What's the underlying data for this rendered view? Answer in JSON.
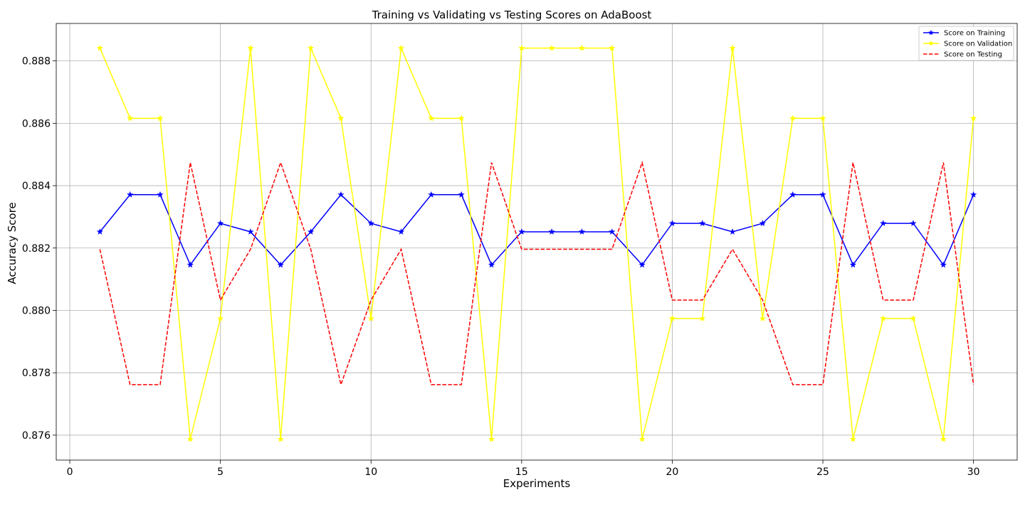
{
  "chart_data": {
    "type": "line",
    "title": "Training vs Validating vs Testing Scores on AdaBoost",
    "xlabel": "Experiments",
    "ylabel": "Accuracy Score",
    "xlim": [
      -0.45,
      31.45
    ],
    "ylim": [
      0.8752,
      0.8892
    ],
    "xticks": [
      0,
      5,
      10,
      15,
      20,
      25,
      30
    ],
    "yticks": [
      0.876,
      0.878,
      0.88,
      0.882,
      0.884,
      0.886,
      0.888
    ],
    "ytick_labels": [
      "0.876",
      "0.878",
      "0.880",
      "0.882",
      "0.884",
      "0.886",
      "0.888"
    ],
    "grid": true,
    "legend_position": "top-right",
    "x": [
      1,
      2,
      3,
      4,
      5,
      6,
      7,
      8,
      9,
      10,
      11,
      12,
      13,
      14,
      15,
      16,
      17,
      18,
      19,
      20,
      21,
      22,
      23,
      24,
      25,
      26,
      27,
      28,
      29,
      30
    ],
    "series": [
      {
        "name": "Score on Training",
        "color": "#0000ff",
        "style": "solid",
        "marker": "star",
        "values": [
          0.88252,
          0.88371,
          0.88371,
          0.88146,
          0.88279,
          0.88252,
          0.88146,
          0.88252,
          0.88371,
          0.88279,
          0.88252,
          0.88371,
          0.88371,
          0.88146,
          0.88252,
          0.88252,
          0.88252,
          0.88252,
          0.88146,
          0.88279,
          0.88279,
          0.88252,
          0.88279,
          0.88371,
          0.88371,
          0.88146,
          0.88279,
          0.88279,
          0.88146,
          0.88371
        ]
      },
      {
        "name": "Score on Validation",
        "color": "#ffff00",
        "style": "solid",
        "marker": "star",
        "values": [
          0.88841,
          0.88616,
          0.88616,
          0.87587,
          0.87974,
          0.88841,
          0.87587,
          0.88841,
          0.88616,
          0.87974,
          0.88841,
          0.88616,
          0.88616,
          0.87587,
          0.88841,
          0.88841,
          0.88841,
          0.88841,
          0.87587,
          0.87974,
          0.87974,
          0.88841,
          0.87974,
          0.88616,
          0.88616,
          0.87587,
          0.87974,
          0.87974,
          0.87587,
          0.88616
        ]
      },
      {
        "name": "Score on Testing",
        "color": "#ff0000",
        "style": "dashed",
        "marker": "none",
        "values": [
          0.88196,
          0.87762,
          0.87762,
          0.88474,
          0.88033,
          0.88196,
          0.88474,
          0.88196,
          0.87762,
          0.88033,
          0.88196,
          0.87762,
          0.87762,
          0.88474,
          0.88196,
          0.88196,
          0.88196,
          0.88196,
          0.88474,
          0.88033,
          0.88033,
          0.88196,
          0.88033,
          0.87762,
          0.87762,
          0.88474,
          0.88033,
          0.88033,
          0.88474,
          0.87762
        ]
      }
    ]
  }
}
